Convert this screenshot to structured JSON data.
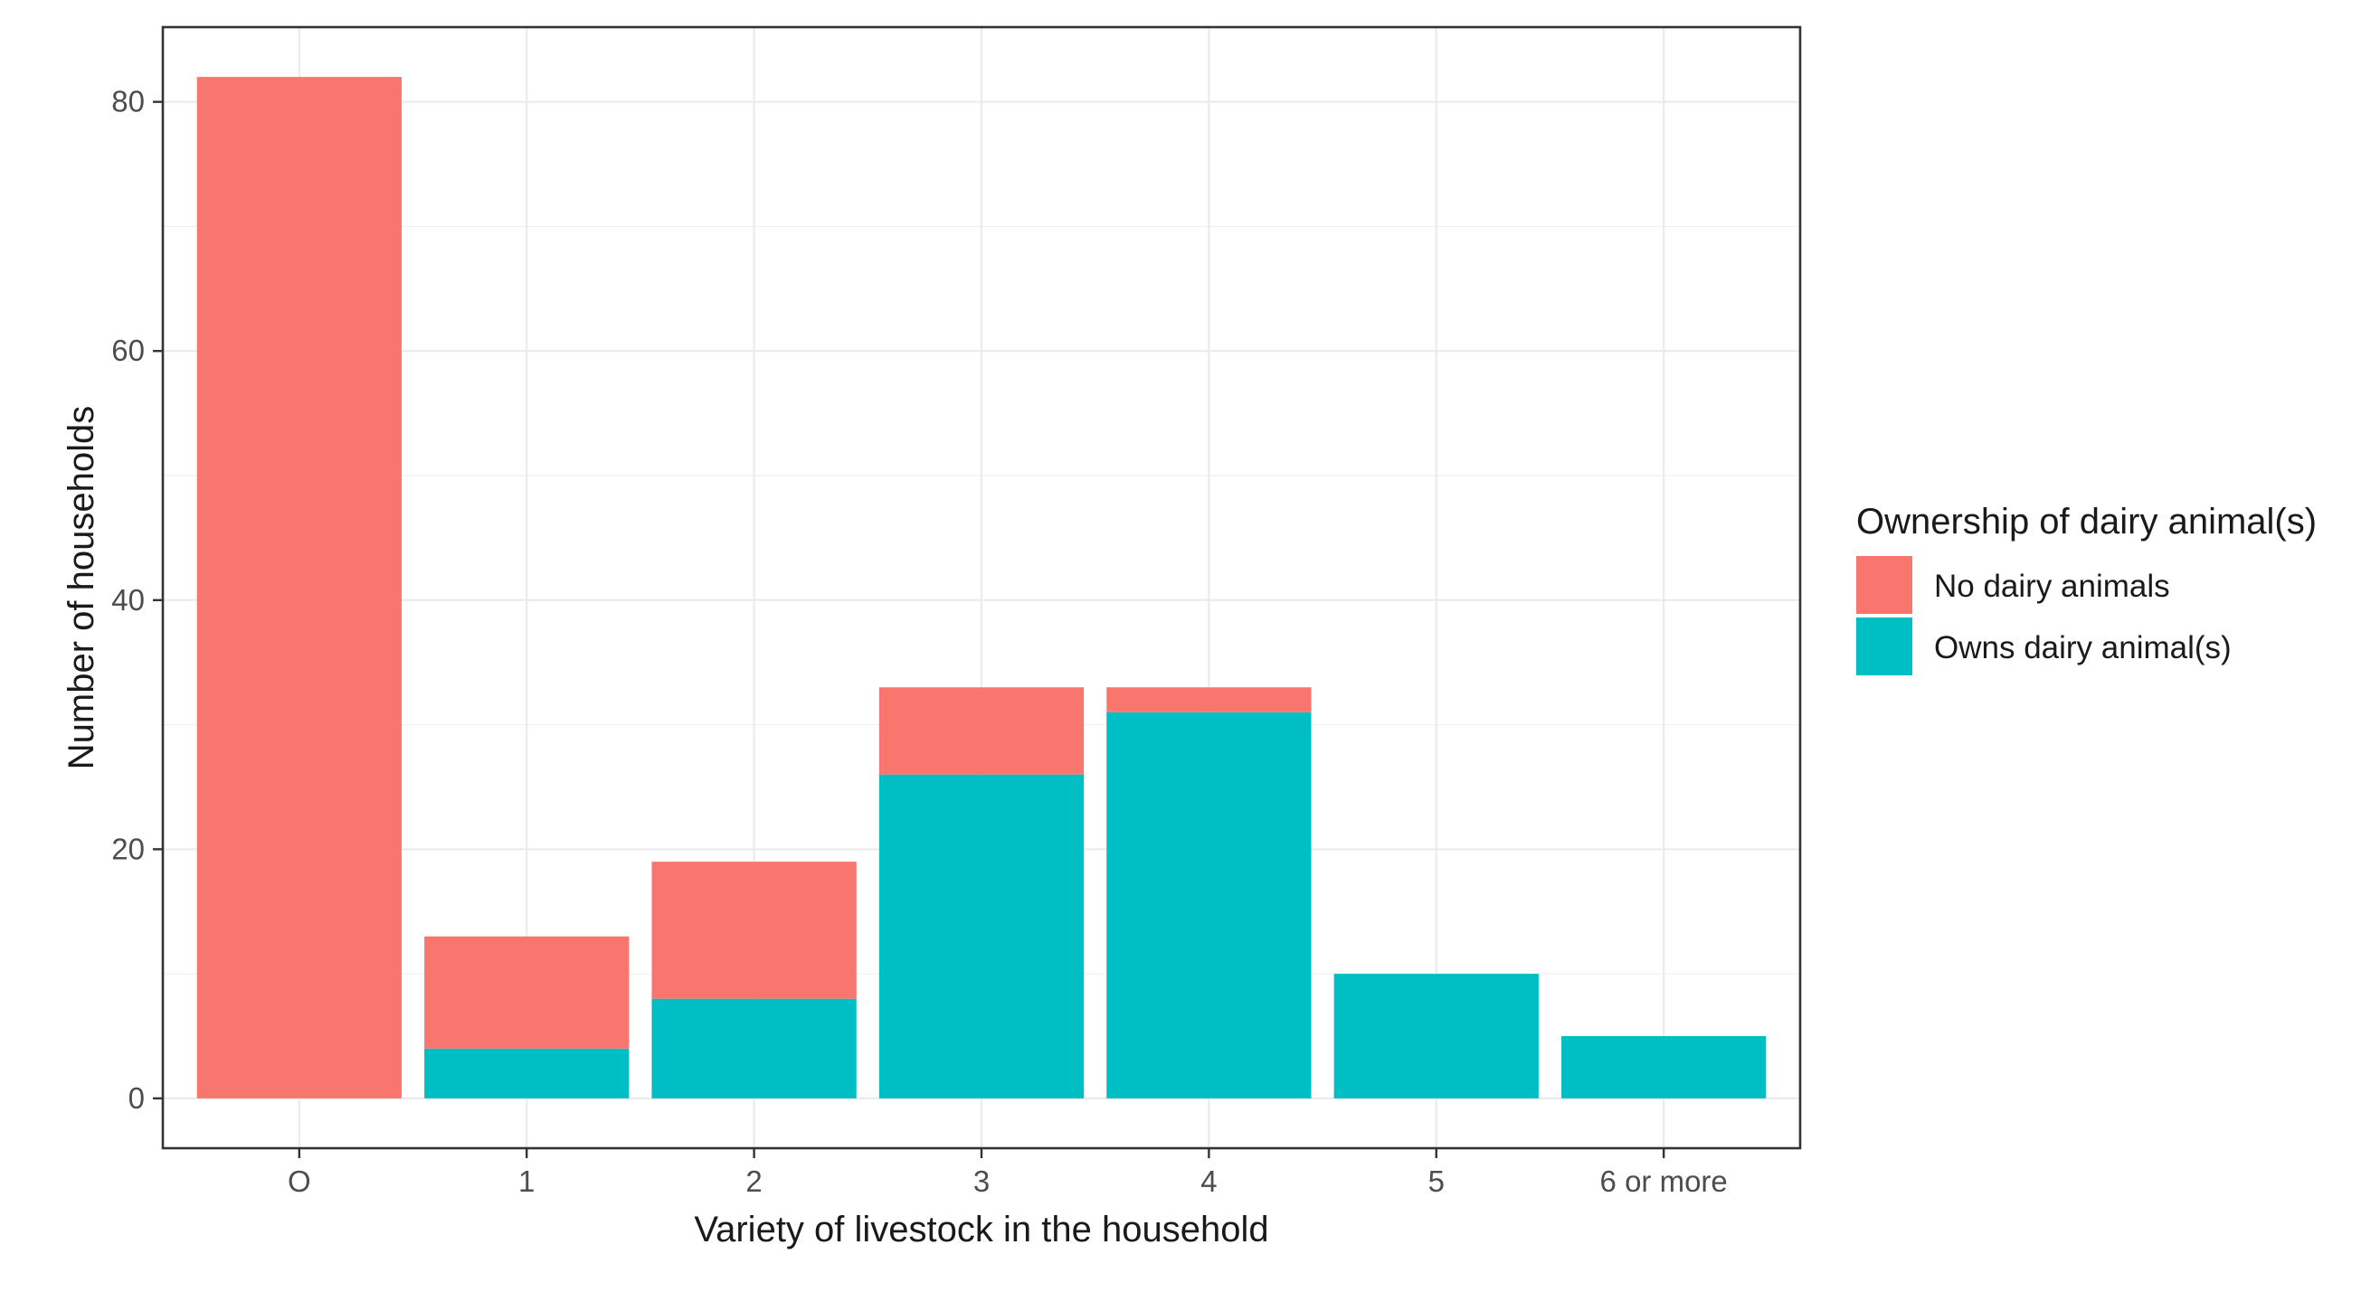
{
  "chart_data": {
    "type": "bar",
    "stacked": true,
    "title": "",
    "xlabel": "Variety of livestock in the household",
    "ylabel": "Number of households",
    "categories": [
      "O",
      "1",
      "2",
      "3",
      "4",
      "5",
      "6 or more"
    ],
    "series": [
      {
        "name": "Owns dairy animal(s)",
        "color": "#00BFC4",
        "values": [
          0,
          4,
          8,
          26,
          31,
          10,
          5
        ]
      },
      {
        "name": "No dairy animals",
        "color": "#F8766D",
        "values": [
          82,
          9,
          11,
          7,
          2,
          0,
          0
        ]
      }
    ],
    "ylim": [
      -4,
      86
    ],
    "yticks": [
      0,
      20,
      40,
      60,
      80
    ],
    "ytick_labels": [
      "0",
      "20",
      "40",
      "60",
      "80"
    ],
    "grid": true,
    "legend": {
      "title": "Ownership of dairy animal(s)",
      "position": "right",
      "items": [
        {
          "label": "No dairy animals",
          "color": "#F8766D"
        },
        {
          "label": "Owns dairy animal(s)",
          "color": "#00BFC4"
        }
      ]
    }
  }
}
